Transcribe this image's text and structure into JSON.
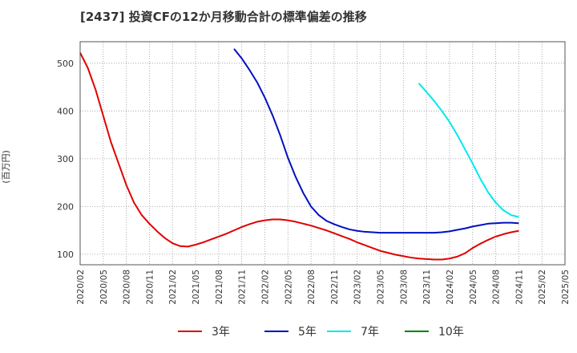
{
  "chart_data": {
    "type": "line",
    "title": "[2437]  投資CFの12か月移動合計の標準偏差の推移",
    "ylabel": "(百万円)",
    "xlabel": "",
    "ylim": [
      78,
      545
    ],
    "y_ticks": [
      100,
      200,
      300,
      400,
      500
    ],
    "x_ticks": [
      "2020/02",
      "2020/05",
      "2020/08",
      "2020/11",
      "2021/02",
      "2021/05",
      "2021/08",
      "2021/11",
      "2022/02",
      "2022/05",
      "2022/08",
      "2022/11",
      "2023/02",
      "2023/05",
      "2023/08",
      "2023/11",
      "2024/02",
      "2024/05",
      "2024/08",
      "2024/11",
      "2025/02",
      "2025/05"
    ],
    "grid": true,
    "legend_position": "bottom",
    "series": [
      {
        "name": "3年",
        "color": "#e00000",
        "points": [
          [
            "2020/02",
            522
          ],
          [
            "2020/03",
            490
          ],
          [
            "2020/04",
            445
          ],
          [
            "2020/05",
            390
          ],
          [
            "2020/06",
            335
          ],
          [
            "2020/07",
            290
          ],
          [
            "2020/08",
            245
          ],
          [
            "2020/09",
            208
          ],
          [
            "2020/10",
            182
          ],
          [
            "2020/11",
            164
          ],
          [
            "2020/12",
            148
          ],
          [
            "2021/01",
            134
          ],
          [
            "2021/02",
            123
          ],
          [
            "2021/03",
            117
          ],
          [
            "2021/04",
            116
          ],
          [
            "2021/05",
            120
          ],
          [
            "2021/06",
            125
          ],
          [
            "2021/07",
            131
          ],
          [
            "2021/08",
            137
          ],
          [
            "2021/09",
            143
          ],
          [
            "2021/10",
            150
          ],
          [
            "2021/11",
            157
          ],
          [
            "2021/12",
            163
          ],
          [
            "2022/01",
            168
          ],
          [
            "2022/02",
            171
          ],
          [
            "2022/03",
            173
          ],
          [
            "2022/04",
            173
          ],
          [
            "2022/05",
            171
          ],
          [
            "2022/06",
            168
          ],
          [
            "2022/07",
            164
          ],
          [
            "2022/08",
            160
          ],
          [
            "2022/09",
            155
          ],
          [
            "2022/10",
            150
          ],
          [
            "2022/11",
            144
          ],
          [
            "2022/12",
            138
          ],
          [
            "2023/01",
            132
          ],
          [
            "2023/02",
            125
          ],
          [
            "2023/03",
            119
          ],
          [
            "2023/04",
            113
          ],
          [
            "2023/05",
            107
          ],
          [
            "2023/06",
            103
          ],
          [
            "2023/07",
            99
          ],
          [
            "2023/08",
            96
          ],
          [
            "2023/09",
            93
          ],
          [
            "2023/10",
            91
          ],
          [
            "2023/11",
            90
          ],
          [
            "2023/12",
            89
          ],
          [
            "2024/01",
            89
          ],
          [
            "2024/02",
            91
          ],
          [
            "2024/03",
            95
          ],
          [
            "2024/04",
            102
          ],
          [
            "2024/05",
            113
          ],
          [
            "2024/06",
            122
          ],
          [
            "2024/07",
            130
          ],
          [
            "2024/08",
            137
          ],
          [
            "2024/09",
            142
          ],
          [
            "2024/10",
            146
          ],
          [
            "2024/11",
            149
          ]
        ]
      },
      {
        "name": "5年",
        "color": "#0010c0",
        "points": [
          [
            "2021/10",
            530
          ],
          [
            "2021/11",
            510
          ],
          [
            "2021/12",
            486
          ],
          [
            "2022/01",
            460
          ],
          [
            "2022/02",
            428
          ],
          [
            "2022/03",
            391
          ],
          [
            "2022/04",
            349
          ],
          [
            "2022/05",
            302
          ],
          [
            "2022/06",
            262
          ],
          [
            "2022/07",
            228
          ],
          [
            "2022/08",
            200
          ],
          [
            "2022/09",
            182
          ],
          [
            "2022/10",
            170
          ],
          [
            "2022/11",
            163
          ],
          [
            "2022/12",
            157
          ],
          [
            "2023/01",
            152
          ],
          [
            "2023/02",
            149
          ],
          [
            "2023/03",
            147
          ],
          [
            "2023/04",
            146
          ],
          [
            "2023/05",
            145
          ],
          [
            "2023/06",
            145
          ],
          [
            "2023/07",
            145
          ],
          [
            "2023/08",
            145
          ],
          [
            "2023/09",
            145
          ],
          [
            "2023/10",
            145
          ],
          [
            "2023/11",
            145
          ],
          [
            "2023/12",
            145
          ],
          [
            "2024/01",
            146
          ],
          [
            "2024/02",
            148
          ],
          [
            "2024/03",
            151
          ],
          [
            "2024/04",
            154
          ],
          [
            "2024/05",
            158
          ],
          [
            "2024/06",
            161
          ],
          [
            "2024/07",
            164
          ],
          [
            "2024/08",
            165
          ],
          [
            "2024/09",
            166
          ],
          [
            "2024/10",
            166
          ],
          [
            "2024/11",
            165
          ]
        ]
      },
      {
        "name": "7年",
        "color": "#00e8f0",
        "points": [
          [
            "2023/10",
            458
          ],
          [
            "2023/11",
            440
          ],
          [
            "2023/12",
            421
          ],
          [
            "2024/01",
            400
          ],
          [
            "2024/02",
            377
          ],
          [
            "2024/03",
            350
          ],
          [
            "2024/04",
            320
          ],
          [
            "2024/05",
            290
          ],
          [
            "2024/06",
            258
          ],
          [
            "2024/07",
            230
          ],
          [
            "2024/08",
            208
          ],
          [
            "2024/09",
            192
          ],
          [
            "2024/10",
            182
          ],
          [
            "2024/11",
            178
          ]
        ]
      },
      {
        "name": "10年",
        "color": "#008000",
        "points": []
      }
    ]
  }
}
